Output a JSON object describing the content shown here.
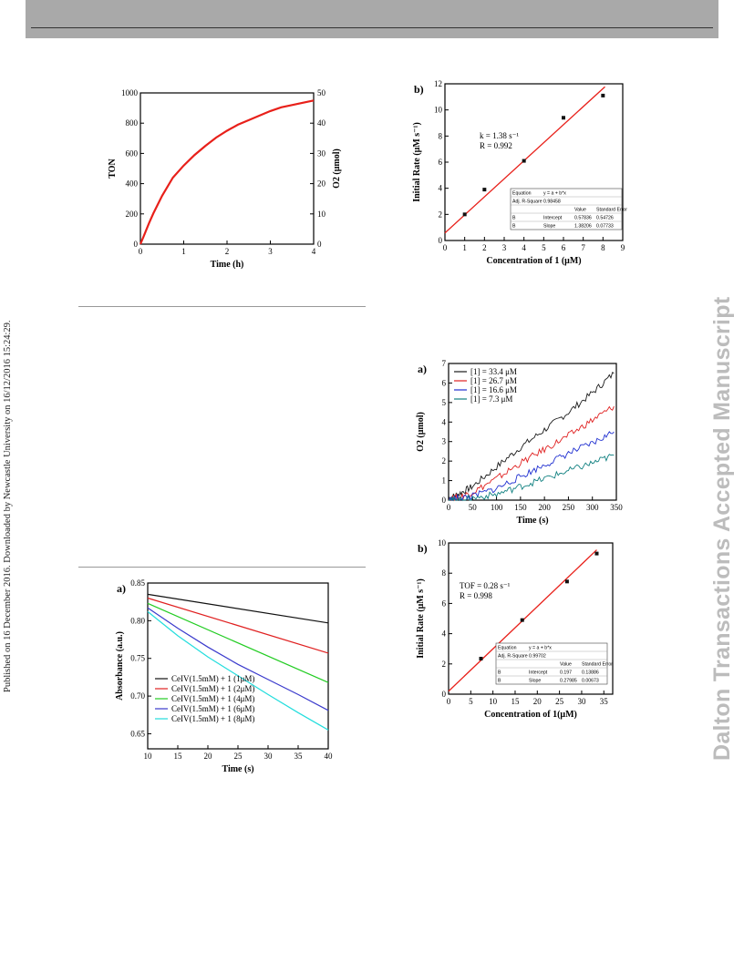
{
  "margin_note": "Published on 16 December 2016. Downloaded by Newcastle University on 16/12/2016 15:24:29.",
  "watermark": "Dalton Transactions Accepted Manuscript",
  "figures": [
    {
      "id": "ton",
      "panel_label": "",
      "xlabel": "Time (h)",
      "ylabel": "TON",
      "y2label": "O2 (μmol)",
      "xlim": [
        0,
        4
      ],
      "ylim": [
        0,
        1000
      ],
      "y2lim": [
        0,
        50
      ],
      "xticks": [
        "0",
        "1",
        "2",
        "3",
        "4"
      ],
      "yticks": [
        "0",
        "200",
        "400",
        "600",
        "800",
        "1000"
      ],
      "y2ticks": [
        "0",
        "10",
        "20",
        "30",
        "40",
        "50"
      ]
    },
    {
      "id": "rate1",
      "panel_label": "b)",
      "xlabel": "Concentration of 1 (μM)",
      "ylabel": "Initial Rate (μM s⁻¹)",
      "xlim": [
        0,
        9
      ],
      "ylim": [
        0,
        12
      ],
      "xticks": [
        "0",
        "1",
        "2",
        "3",
        "4",
        "5",
        "6",
        "7",
        "8",
        "9"
      ],
      "yticks": [
        "0",
        "2",
        "4",
        "6",
        "8",
        "10",
        "12"
      ],
      "annotation": [
        "k = 1.38 s⁻¹",
        "R = 0.992"
      ],
      "fit_table": {
        "rows": [
          [
            "Equation",
            "y = a + b*x",
            "",
            ""
          ],
          [
            "Adj. R-Square",
            "0.98458",
            "",
            ""
          ],
          [
            "",
            "",
            "Value",
            "Standard Error"
          ],
          [
            "B",
            "Intercept",
            "0.57836",
            "0.54726"
          ],
          [
            "B",
            "Slope",
            "1.38206",
            "0.07733"
          ]
        ]
      }
    },
    {
      "id": "o2",
      "panel_label": "a)",
      "xlabel": "Time (s)",
      "ylabel": "O2 (μmol)",
      "xlim": [
        0,
        350
      ],
      "ylim": [
        0,
        7
      ],
      "xticks": [
        "0",
        "50",
        "100",
        "150",
        "200",
        "250",
        "300",
        "350"
      ],
      "yticks": [
        "0",
        "1",
        "2",
        "3",
        "4",
        "5",
        "6",
        "7"
      ],
      "legend": [
        "[1] = 33.4 μM",
        "[1] = 26.7 μM",
        "[1] = 16.6 μM",
        "[1] = 7.3 μM"
      ]
    },
    {
      "id": "rate2",
      "panel_label": "b)",
      "xlabel": "Concentration of 1(μM)",
      "ylabel": "Initial Rate (μM s⁻¹)",
      "xlim": [
        0,
        37
      ],
      "ylim": [
        0,
        10
      ],
      "xticks": [
        "0",
        "5",
        "10",
        "15",
        "20",
        "25",
        "30",
        "35"
      ],
      "yticks": [
        "0",
        "2",
        "4",
        "6",
        "8",
        "10"
      ],
      "annotation": [
        "TOF = 0.28 s⁻¹",
        "R = 0.998"
      ],
      "fit_table": {
        "rows": [
          [
            "Equation",
            "y = a + b*x",
            "",
            ""
          ],
          [
            "Adj. R-Square",
            "0.99702",
            "",
            ""
          ],
          [
            "",
            "",
            "Value",
            "Standard Error"
          ],
          [
            "B",
            "Intercept",
            "0.197",
            "0.13886"
          ],
          [
            "B",
            "Slope",
            "0.27985",
            "0.00673"
          ]
        ]
      }
    },
    {
      "id": "abs",
      "panel_label": "a)",
      "xlabel": "Time (s)",
      "ylabel": "Absorbance (a.u.)",
      "xlim": [
        10,
        40
      ],
      "ylim": [
        0.63,
        0.85
      ],
      "xticks": [
        "10",
        "15",
        "20",
        "25",
        "30",
        "35",
        "40"
      ],
      "yticks": [
        "0.65",
        "0.70",
        "0.75",
        "0.80",
        "0.85"
      ],
      "legend": [
        "CeIV(1.5mM) + 1 (1μM)",
        "CeIV(1.5mM) + 1 (2μM)",
        "CeIV(1.5mM) + 1 (4μM)",
        "CeIV(1.5mM) + 1 (6μM)",
        "CeIV(1.5mM) + 1 (8μM)"
      ]
    }
  ],
  "chart_data": [
    {
      "type": "line",
      "figure": "ton",
      "series": [
        {
          "name": "",
          "color": "#e8201a",
          "x": [
            0,
            0.1,
            0.2,
            0.3,
            0.5,
            0.75,
            1.0,
            1.25,
            1.5,
            1.75,
            2.0,
            2.25,
            2.5,
            2.75,
            3.0,
            3.25,
            3.5,
            3.75,
            4.0
          ],
          "y": [
            0,
            70,
            140,
            205,
            320,
            440,
            520,
            590,
            650,
            705,
            750,
            790,
            820,
            850,
            880,
            905,
            920,
            935,
            950
          ]
        }
      ]
    },
    {
      "type": "scatter",
      "figure": "rate1",
      "points": {
        "x": [
          1,
          2,
          4,
          6,
          8
        ],
        "y": [
          2.0,
          3.9,
          6.1,
          9.4,
          11.1
        ]
      },
      "fit": {
        "intercept": 0.57836,
        "slope": 1.38206,
        "x_range": [
          0,
          8.1
        ],
        "color": "#e8201a"
      }
    },
    {
      "type": "line",
      "figure": "o2",
      "series": [
        {
          "name": "[1] = 33.4 μM",
          "color": "#1a1a1a",
          "x": [
            0,
            20,
            50,
            100,
            150,
            200,
            250,
            300,
            345
          ],
          "y": [
            0.1,
            0.3,
            0.7,
            1.7,
            2.7,
            3.6,
            4.5,
            5.5,
            6.5
          ]
        },
        {
          "name": "[1] = 26.7 μM",
          "color": "#e02020",
          "x": [
            0,
            20,
            50,
            100,
            150,
            200,
            250,
            300,
            345
          ],
          "y": [
            0.05,
            0.15,
            0.4,
            1.1,
            1.9,
            2.6,
            3.3,
            4.1,
            4.8
          ]
        },
        {
          "name": "[1] = 16.6 μM",
          "color": "#1f2fd0",
          "x": [
            0,
            20,
            50,
            100,
            150,
            200,
            250,
            300,
            345
          ],
          "y": [
            0.0,
            0.1,
            0.2,
            0.6,
            1.2,
            1.8,
            2.4,
            2.9,
            3.5
          ]
        },
        {
          "name": "[1] = 7.3 μM",
          "color": "#108080",
          "x": [
            0,
            20,
            50,
            100,
            150,
            200,
            250,
            300,
            345
          ],
          "y": [
            0.0,
            0.0,
            0.1,
            0.3,
            0.7,
            1.1,
            1.5,
            1.9,
            2.3
          ]
        }
      ]
    },
    {
      "type": "scatter",
      "figure": "rate2",
      "points": {
        "x": [
          7.3,
          16.6,
          26.7,
          33.4
        ],
        "y": [
          2.35,
          4.9,
          7.45,
          9.3
        ]
      },
      "fit": {
        "intercept": 0.197,
        "slope": 0.27985,
        "x_range": [
          0,
          33.4
        ],
        "color": "#e8201a"
      }
    },
    {
      "type": "line",
      "figure": "abs",
      "series": [
        {
          "name": "CeIV(1.5mM) + 1 (1μM)",
          "color": "#111111",
          "x": [
            10,
            40
          ],
          "y": [
            0.835,
            0.797
          ]
        },
        {
          "name": "CeIV(1.5mM) + 1 (2μM)",
          "color": "#e02020",
          "x": [
            10,
            40
          ],
          "y": [
            0.83,
            0.757
          ]
        },
        {
          "name": "CeIV(1.5mM) + 1 (4μM)",
          "color": "#22cc22",
          "x": [
            10,
            40
          ],
          "y": [
            0.823,
            0.718
          ]
        },
        {
          "name": "CeIV(1.5mM) + 1 (6μM)",
          "color": "#3a3acc",
          "x": [
            10,
            15,
            20,
            25,
            30,
            35,
            40
          ],
          "y": [
            0.817,
            0.79,
            0.765,
            0.742,
            0.722,
            0.702,
            0.681
          ]
        },
        {
          "name": "CeIV(1.5mM) + 1 (8μM)",
          "color": "#22dddd",
          "x": [
            10,
            15,
            20,
            25,
            30,
            35,
            40
          ],
          "y": [
            0.812,
            0.78,
            0.752,
            0.727,
            0.702,
            0.678,
            0.655
          ]
        }
      ]
    }
  ]
}
